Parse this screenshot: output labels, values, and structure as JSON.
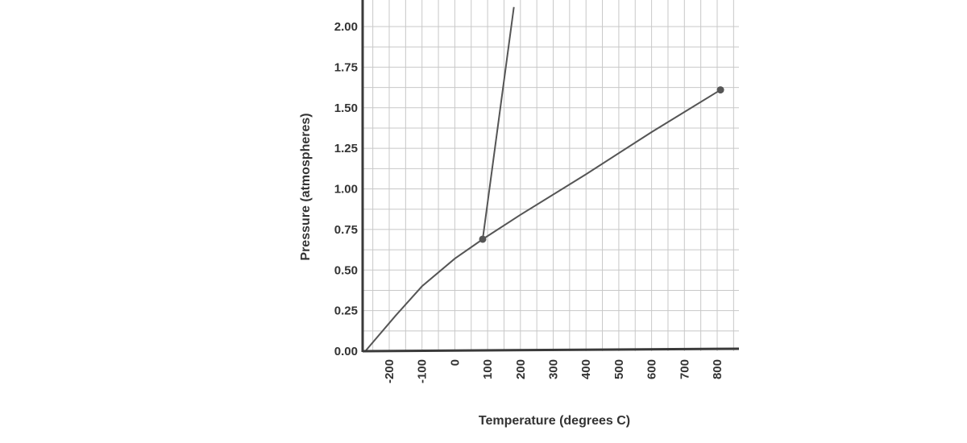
{
  "chart_data": {
    "type": "line",
    "title": "",
    "xlabel": "Temperature (degrees C)",
    "ylabel": "Pressure (atmospheres)",
    "xlim": [
      -273,
      850
    ],
    "ylim": [
      0,
      2.12
    ],
    "grid": true,
    "legend": "none",
    "x_ticks": [
      -200,
      -100,
      0,
      100,
      200,
      300,
      400,
      500,
      600,
      700,
      800
    ],
    "x_tick_labels": [
      "-200",
      "-100",
      "0",
      "100",
      "200",
      "300",
      "400",
      "500",
      "600",
      "700",
      "800"
    ],
    "y_ticks": [
      0,
      0.25,
      0.5,
      0.75,
      1.0,
      1.25,
      1.5,
      1.75,
      2.0
    ],
    "y_tick_labels": [
      "0.00",
      "0.25",
      "0.50",
      "0.75",
      "1.00",
      "1.25",
      "1.50",
      "1.75",
      "2.00"
    ],
    "series": [
      {
        "points": [
          [
            -273,
            0
          ],
          [
            -180,
            0.22
          ],
          [
            -100,
            0.4
          ],
          [
            0,
            0.57
          ],
          [
            85,
            0.69
          ],
          [
            200,
            0.84
          ],
          [
            400,
            1.09
          ],
          [
            600,
            1.35
          ],
          [
            810,
            1.61
          ]
        ],
        "markers": [
          [
            85,
            0.69
          ],
          [
            810,
            1.61
          ]
        ]
      },
      {
        "points": [
          [
            85,
            0.69
          ],
          [
            180,
            2.12
          ]
        ],
        "markers": []
      }
    ],
    "colors": {
      "line": "#555555",
      "axis": "#3a3a3a",
      "grid": "#c8c8c8",
      "text": "#333333"
    }
  }
}
